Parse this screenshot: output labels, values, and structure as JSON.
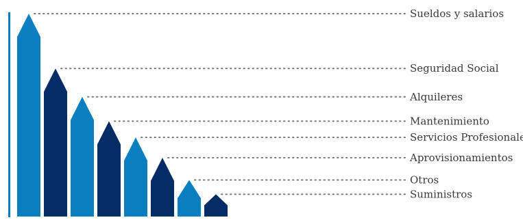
{
  "chart_data": {
    "type": "bar",
    "title": "",
    "xlabel": "",
    "ylabel": "",
    "grid": false,
    "legend": "none",
    "categories": [
      "Sueldos y salarios",
      "Seguridad Social",
      "Alquileres",
      "Mantenimiento",
      "Servicios Profesionales",
      "Aprovisionamientos",
      "Otros",
      "Suministros"
    ],
    "values": [
      100,
      73,
      59,
      47,
      39,
      29,
      18,
      11
    ],
    "ylim": [
      0,
      100
    ],
    "colors": [
      "#0a7fc0",
      "#032d64",
      "#0a7fc0",
      "#032d64",
      "#0a7fc0",
      "#032d64",
      "#0a7fc0",
      "#032d64"
    ],
    "axis_color": "#0a7fc0",
    "leader_color": "#777777"
  }
}
